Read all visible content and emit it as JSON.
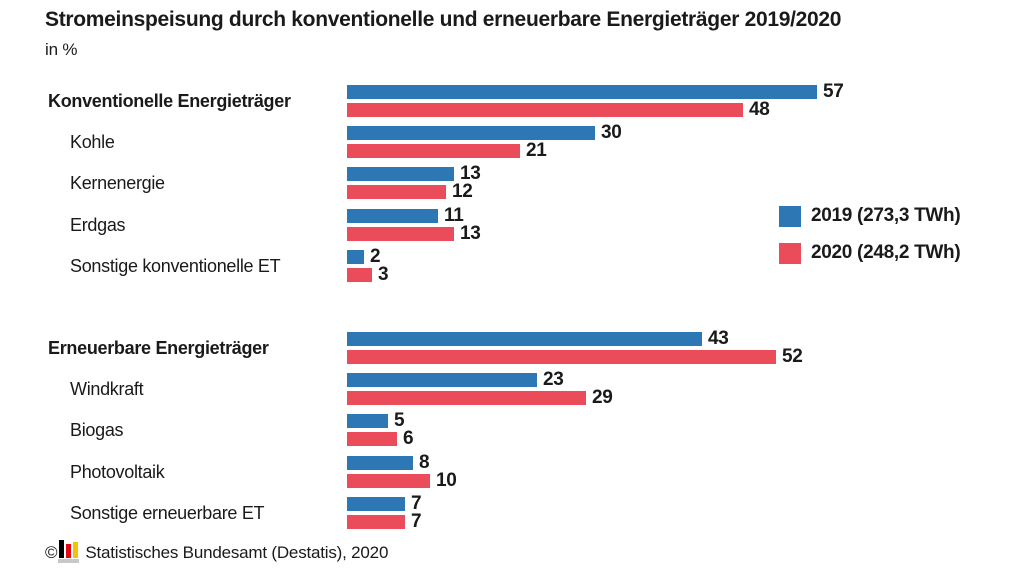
{
  "title": "Stromeinspeisung durch konventionelle und erneuerbare Energieträger 2019/2020",
  "subtitle": "in %",
  "legend": [
    {
      "label": "2019 (273,3 TWh)",
      "color": "#2E77B5"
    },
    {
      "label": "2020 (248,2 TWh)",
      "color": "#EA4C59"
    }
  ],
  "footer": {
    "copyright": "©",
    "logo_icon": "destatis-bar-chart-icon",
    "source": "Statistisches Bundesamt (Destatis), 2020"
  },
  "chart_data": {
    "type": "bar",
    "orientation": "horizontal",
    "title": "Stromeinspeisung durch konventionelle und erneuerbare Energieträger 2019/2020",
    "unit": "%",
    "xlim": [
      0,
      60
    ],
    "grid": false,
    "legend_position": "right",
    "value_labels": true,
    "series": [
      {
        "name": "2019 (273,3 TWh)",
        "color": "#2E77B5"
      },
      {
        "name": "2020 (248,2 TWh)",
        "color": "#EA4C59"
      }
    ],
    "categories": [
      "Konventionelle Energieträger",
      "Kohle",
      "Kernenergie",
      "Erdgas",
      "Sonstige konventionelle ET",
      "Erneuerbare Energieträger",
      "Windkraft",
      "Biogas",
      "Photovoltaik",
      "Sonstige erneuerbare ET"
    ],
    "rows": [
      {
        "label": "Konventionelle Energieträger",
        "bold": true,
        "indent": false,
        "group": 0,
        "values": [
          57,
          48
        ]
      },
      {
        "label": "Kohle",
        "bold": false,
        "indent": true,
        "group": 0,
        "values": [
          30,
          21
        ]
      },
      {
        "label": "Kernenergie",
        "bold": false,
        "indent": true,
        "group": 0,
        "values": [
          13,
          12
        ]
      },
      {
        "label": "Erdgas",
        "bold": false,
        "indent": true,
        "group": 0,
        "values": [
          11,
          13
        ]
      },
      {
        "label": "Sonstige konventionelle ET",
        "bold": false,
        "indent": true,
        "group": 0,
        "values": [
          2,
          3
        ]
      },
      {
        "label": "Erneuerbare Energieträger",
        "bold": true,
        "indent": false,
        "group": 1,
        "values": [
          43,
          52
        ]
      },
      {
        "label": "Windkraft",
        "bold": false,
        "indent": true,
        "group": 1,
        "values": [
          23,
          29
        ]
      },
      {
        "label": "Biogas",
        "bold": false,
        "indent": true,
        "group": 1,
        "values": [
          5,
          6
        ]
      },
      {
        "label": "Photovoltaik",
        "bold": false,
        "indent": true,
        "group": 1,
        "values": [
          8,
          10
        ]
      },
      {
        "label": "Sonstige erneuerbare ET",
        "bold": false,
        "indent": true,
        "group": 1,
        "values": [
          7,
          7
        ]
      }
    ]
  }
}
